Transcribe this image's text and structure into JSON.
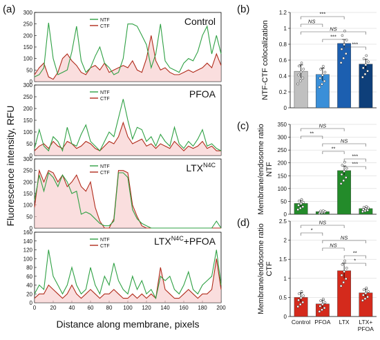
{
  "panel_labels": {
    "a": "(a)",
    "b": "(b)",
    "c": "(c)",
    "d": "(d)"
  },
  "left_ylabel": "Fluorescence intensity, RFU",
  "left_xlabel": "Distance along membrane, pixels",
  "colors": {
    "ntf": "#2ea043",
    "ctf": "#b02a1a",
    "fill_pink": "#f6c8c8",
    "bar_control": "#c0c0c0",
    "bar_pfoa": "#3a8fd8",
    "bar_ltx": "#1c5fb0",
    "bar_ltxpfoa": "#0e3f7a",
    "bar_c_ltx": "#238b2a",
    "bar_d": "#d42a1c"
  },
  "chart_data": [
    {
      "type": "line",
      "title": "Control",
      "legend": [
        "NTF",
        "CTF"
      ],
      "x": [
        0,
        5,
        10,
        15,
        20,
        25,
        30,
        35,
        40,
        45,
        50,
        55,
        60,
        65,
        70,
        75,
        80,
        85,
        90,
        95,
        100,
        105,
        110,
        115,
        120,
        125,
        130,
        135,
        140,
        145,
        150,
        155,
        160,
        165,
        170,
        175,
        180,
        185,
        190,
        195,
        200
      ],
      "ylim": [
        0,
        300
      ],
      "yticks": [
        0,
        50,
        100,
        150,
        200,
        250,
        300
      ],
      "xticks": [],
      "series": [
        {
          "name": "NTF",
          "values": [
            20,
            30,
            60,
            255,
            100,
            30,
            40,
            50,
            130,
            240,
            90,
            40,
            60,
            110,
            150,
            80,
            60,
            30,
            40,
            100,
            250,
            250,
            240,
            200,
            160,
            60,
            120,
            250,
            90,
            60,
            50,
            40,
            80,
            100,
            90,
            130,
            200,
            240,
            120,
            200,
            120
          ]
        },
        {
          "name": "CTF",
          "values": [
            30,
            60,
            80,
            20,
            10,
            40,
            100,
            120,
            90,
            70,
            40,
            30,
            60,
            70,
            50,
            80,
            40,
            50,
            60,
            70,
            60,
            90,
            50,
            40,
            100,
            200,
            90,
            50,
            60,
            40,
            30,
            30,
            40,
            50,
            40,
            50,
            60,
            80,
            60,
            120,
            70
          ]
        }
      ]
    },
    {
      "type": "line",
      "title": "PFOA",
      "legend": [
        "NTF",
        "CTF"
      ],
      "x": [
        0,
        5,
        10,
        15,
        20,
        25,
        30,
        35,
        40,
        45,
        50,
        55,
        60,
        65,
        70,
        75,
        80,
        85,
        90,
        95,
        100,
        105,
        110,
        115,
        120,
        125,
        130,
        135,
        140,
        145,
        150,
        155,
        160,
        165,
        170,
        175,
        180,
        185,
        190,
        195,
        200
      ],
      "ylim": [
        0,
        300
      ],
      "yticks": [
        0,
        50,
        100,
        150,
        200,
        250,
        300
      ],
      "xticks": [],
      "series": [
        {
          "name": "NTF",
          "values": [
            30,
            110,
            40,
            20,
            80,
            60,
            20,
            120,
            50,
            40,
            90,
            130,
            60,
            40,
            20,
            60,
            100,
            80,
            160,
            240,
            150,
            70,
            120,
            110,
            60,
            80,
            40,
            90,
            60,
            40,
            120,
            50,
            30,
            60,
            40,
            70,
            110,
            40,
            50,
            30,
            20
          ]
        },
        {
          "name": "CTF",
          "values": [
            20,
            40,
            50,
            30,
            60,
            40,
            30,
            60,
            50,
            30,
            40,
            60,
            50,
            30,
            20,
            40,
            60,
            50,
            80,
            140,
            80,
            50,
            60,
            70,
            40,
            50,
            30,
            50,
            40,
            30,
            60,
            40,
            20,
            40,
            30,
            40,
            60,
            30,
            40,
            20,
            20
          ]
        }
      ]
    },
    {
      "type": "line",
      "title": "LTX<sup>N4C</sup>",
      "legend": [
        "NTF",
        "CTF"
      ],
      "x": [
        0,
        5,
        10,
        15,
        20,
        25,
        30,
        35,
        40,
        45,
        50,
        55,
        60,
        65,
        70,
        75,
        80,
        85,
        90,
        95,
        100,
        105,
        110,
        115,
        120,
        125,
        130,
        135,
        140,
        145,
        150,
        155,
        160,
        165,
        170,
        175,
        180,
        185,
        190,
        195,
        200
      ],
      "ylim": [
        0,
        300
      ],
      "yticks": [
        0,
        50,
        100,
        150,
        200,
        250,
        300
      ],
      "xticks": [],
      "series": [
        {
          "name": "NTF",
          "values": [
            120,
            230,
            160,
            240,
            220,
            180,
            230,
            200,
            150,
            160,
            60,
            70,
            60,
            40,
            20,
            10,
            10,
            30,
            240,
            240,
            220,
            80,
            40,
            20,
            10,
            0,
            0,
            0,
            0,
            0,
            0,
            0,
            0,
            0,
            0,
            0,
            0,
            0,
            0,
            30,
            0
          ]
        },
        {
          "name": "CTF",
          "values": [
            90,
            250,
            200,
            250,
            240,
            200,
            230,
            180,
            200,
            230,
            180,
            160,
            200,
            90,
            30,
            0,
            0,
            40,
            250,
            250,
            240,
            100,
            50,
            10,
            0,
            0,
            0,
            0,
            0,
            0,
            0,
            0,
            0,
            0,
            0,
            0,
            0,
            0,
            0,
            0,
            0
          ]
        }
      ]
    },
    {
      "type": "line",
      "title": "LTX<sup>N4C</sup>+PFOA",
      "legend": [
        "NTF",
        "CTF"
      ],
      "x": [
        0,
        5,
        10,
        15,
        20,
        25,
        30,
        35,
        40,
        45,
        50,
        55,
        60,
        65,
        70,
        75,
        80,
        85,
        90,
        95,
        100,
        105,
        110,
        115,
        120,
        125,
        130,
        135,
        140,
        145,
        150,
        155,
        160,
        165,
        170,
        175,
        180,
        185,
        190,
        195,
        200
      ],
      "ylim": [
        0,
        160
      ],
      "yticks": [
        0,
        20,
        40,
        60,
        80,
        100,
        120,
        140,
        160
      ],
      "xticks": [
        0,
        20,
        40,
        60,
        80,
        100,
        120,
        140,
        160,
        180,
        200
      ],
      "series": [
        {
          "name": "NTF",
          "values": [
            20,
            40,
            30,
            120,
            60,
            40,
            20,
            40,
            80,
            40,
            20,
            30,
            80,
            40,
            20,
            60,
            40,
            90,
            50,
            30,
            20,
            60,
            30,
            50,
            20,
            30,
            10,
            60,
            50,
            60,
            30,
            20,
            40,
            70,
            30,
            20,
            40,
            50,
            60,
            120,
            40
          ]
        },
        {
          "name": "CTF",
          "values": [
            10,
            20,
            20,
            40,
            30,
            20,
            10,
            20,
            40,
            20,
            10,
            20,
            30,
            20,
            10,
            20,
            20,
            30,
            20,
            10,
            10,
            20,
            10,
            20,
            10,
            20,
            10,
            80,
            30,
            20,
            10,
            10,
            20,
            30,
            20,
            10,
            20,
            20,
            30,
            100,
            30
          ]
        }
      ]
    },
    {
      "type": "bar",
      "ylabel": "NTF-CTF colocalization",
      "categories": [
        "Control",
        "PFOA",
        "LTX",
        "LTX+PFOA"
      ],
      "values": [
        0.46,
        0.42,
        0.81,
        0.55
      ],
      "errors": [
        0.08,
        0.08,
        0.05,
        0.06
      ],
      "ylim": [
        0,
        1.2
      ],
      "yticks": [
        0,
        0.2,
        0.4,
        0.6,
        0.8,
        1.0,
        1.2
      ],
      "annotations": [
        "***",
        "NS",
        "NS",
        "***",
        "***"
      ],
      "labels_x_hidden": true
    },
    {
      "type": "bar",
      "ylabel": "Membrane/endosome ratio - NTF",
      "categories": [
        "Control",
        "PFOA",
        "LTX",
        "LTX+PFOA"
      ],
      "values": [
        42,
        10,
        170,
        22
      ],
      "errors": [
        12,
        3,
        18,
        6
      ],
      "ylim": [
        0,
        350
      ],
      "yticks": [
        0,
        50,
        100,
        150,
        200,
        250,
        300,
        350
      ],
      "annotations": [
        "NS",
        "**",
        "NS",
        "**",
        "***",
        "***"
      ],
      "labels_x_hidden": true
    },
    {
      "type": "bar",
      "ylabel": "Membrane/endosome ratio - CTF",
      "categories": [
        "Control",
        "PFOA",
        "LTX",
        "LTX+ PFOA"
      ],
      "values": [
        0.5,
        0.33,
        1.2,
        0.62
      ],
      "errors": [
        0.12,
        0.1,
        0.2,
        0.1
      ],
      "ylim": [
        0,
        2.5
      ],
      "yticks": [
        0,
        0.5,
        1.0,
        1.5,
        2.0,
        2.5
      ],
      "annotations": [
        "NS",
        "*",
        "NS",
        "NS",
        "**",
        "*"
      ],
      "labels_x_hidden": false
    }
  ]
}
